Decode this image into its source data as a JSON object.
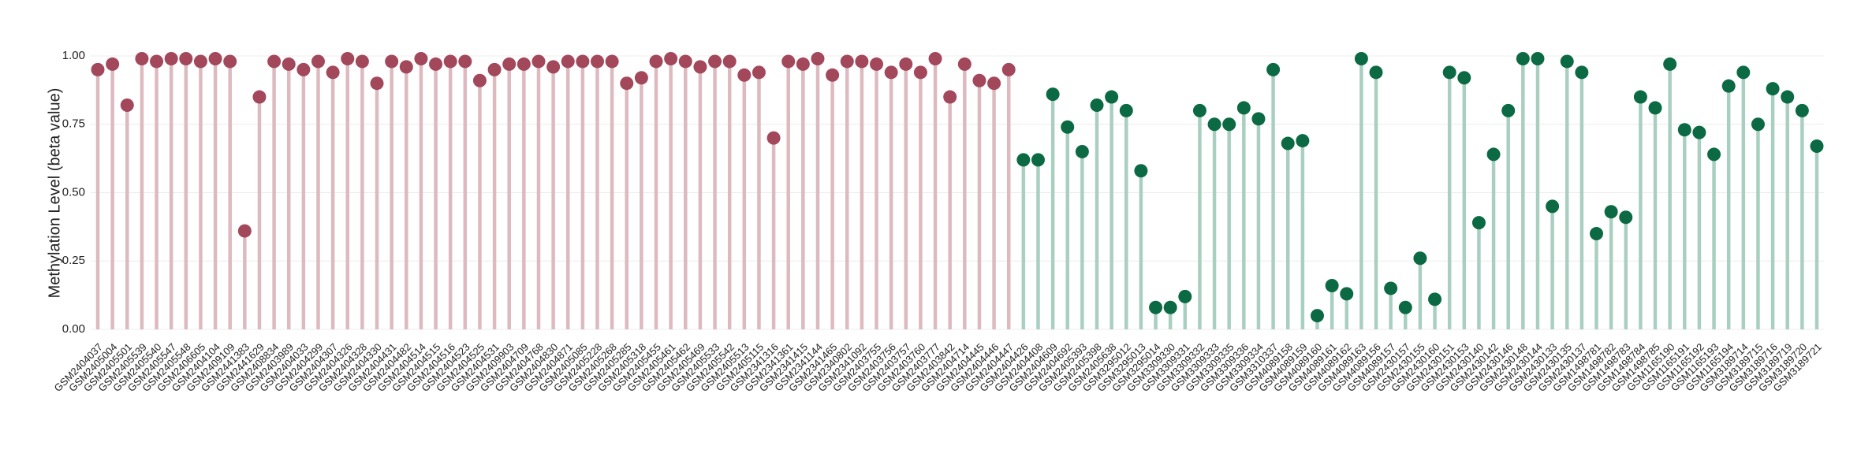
{
  "chart_data": {
    "type": "lollipop",
    "ylabel": "Methylation Level (beta value)",
    "ylim": [
      -0.03,
      1.03
    ],
    "yticks": [
      {
        "value": 0,
        "label": "0.00"
      },
      0.25,
      {
        "value": 0.5,
        "label": "0.50"
      },
      0.75,
      {
        "value": 1,
        "label": "1.00"
      }
    ],
    "grid": true,
    "categories": [
      "GSM2404037",
      "GSM2405004",
      "GSM2405501",
      "GSM2405539",
      "GSM2405540",
      "GSM2405547",
      "GSM2405548",
      "GSM2406605",
      "GSM2404104",
      "GSM2409109",
      "GSM2441383",
      "GSM2441629",
      "GSM2408834",
      "GSM2403989",
      "GSM2404033",
      "GSM2404299",
      "GSM2404307",
      "GSM2404326",
      "GSM2404328",
      "GSM2404330",
      "GSM2404431",
      "GSM2404482",
      "GSM2404514",
      "GSM2404515",
      "GSM2404516",
      "GSM2404523",
      "GSM2404525",
      "GSM2404531",
      "GSM2409903",
      "GSM2404709",
      "GSM2404768",
      "GSM2404830",
      "GSM2404871",
      "GSM2405085",
      "GSM2405228",
      "GSM2405268",
      "GSM2405285",
      "GSM2405318",
      "GSM2405455",
      "GSM2405461",
      "GSM2405462",
      "GSM2405469",
      "GSM2405533",
      "GSM2405542",
      "GSM2405513",
      "GSM2405115",
      "GSM2341316",
      "GSM2341361",
      "GSM2341415",
      "GSM2341144",
      "GSM2341465",
      "GSM2340802",
      "GSM2341092",
      "GSM2403755",
      "GSM2403756",
      "GSM2403757",
      "GSM2403760",
      "GSM2403777",
      "GSM2403842",
      "GSM2404714",
      "GSM2404445",
      "GSM2404446",
      "GSM2404447",
      "GSM2404426",
      "GSM2404408",
      "GSM2404609",
      "GSM2404692",
      "GSM2405393",
      "GSM2405398",
      "GSM2405638",
      "GSM3295012",
      "GSM3295013",
      "GSM3295014",
      "GSM3309330",
      "GSM3309331",
      "GSM3309332",
      "GSM3309333",
      "GSM3309335",
      "GSM3309336",
      "GSM3309334",
      "GSM3310337",
      "GSM4089158",
      "GSM4089159",
      "GSM4089160",
      "GSM4089161",
      "GSM4089162",
      "GSM4089163",
      "GSM4089156",
      "GSM4089157",
      "GSM2430157",
      "GSM2430155",
      "GSM2430160",
      "GSM2430151",
      "GSM2430153",
      "GSM2430140",
      "GSM2430142",
      "GSM2430146",
      "GSM2430148",
      "GSM2430144",
      "GSM2430133",
      "GSM2430135",
      "GSM2430137",
      "GSM1498781",
      "GSM1498782",
      "GSM1498783",
      "GSM1498784",
      "GSM1498785",
      "GSM1165190",
      "GSM1165191",
      "GSM1165192",
      "GSM1165193",
      "GSM1165194",
      "GSM3189714",
      "GSM3189715",
      "GSM3189716",
      "GSM3189719",
      "GSM3189720",
      "GSM3189721"
    ],
    "series": [
      {
        "color": "#a3475b",
        "stem_color": "#ddb9c0",
        "values": [
          0.95,
          0.97,
          0.82,
          0.99,
          0.98,
          0.99,
          0.99,
          0.98,
          0.99,
          0.98,
          0.36,
          0.85,
          0.98,
          0.97,
          0.95,
          0.98,
          0.94,
          0.99,
          0.98,
          0.9,
          0.98,
          0.96,
          0.99,
          0.97,
          0.98,
          0.98,
          0.91,
          0.95,
          0.97,
          0.97,
          0.98,
          0.96,
          0.98,
          0.98,
          0.98,
          0.98,
          0.9,
          0.92,
          0.98,
          0.99,
          0.98,
          0.96,
          0.98,
          0.98,
          0.93,
          0.94,
          0.7,
          0.98,
          0.97,
          0.99,
          0.93,
          0.98,
          0.98,
          0.97,
          0.94,
          0.97,
          0.94,
          0.99,
          0.85,
          0.97,
          0.91,
          0.9,
          0.95,
          null,
          null,
          null,
          null,
          null,
          null,
          null,
          null,
          null,
          null,
          null,
          null,
          null,
          null,
          null,
          null,
          null,
          null,
          null,
          null,
          null,
          null,
          null,
          null,
          null,
          null,
          null,
          null,
          null,
          null,
          null,
          null,
          null,
          null,
          null,
          null,
          null,
          null,
          null,
          null,
          null,
          null,
          null,
          null,
          null,
          null,
          null,
          null,
          null,
          null,
          null,
          null,
          null,
          null,
          null
        ]
      },
      {
        "color": "#0b6a43",
        "stem_color": "#a9cfc1",
        "values": [
          null,
          null,
          null,
          null,
          null,
          null,
          null,
          null,
          null,
          null,
          null,
          null,
          null,
          null,
          null,
          null,
          null,
          null,
          null,
          null,
          null,
          null,
          null,
          null,
          null,
          null,
          null,
          null,
          null,
          null,
          null,
          null,
          null,
          null,
          null,
          null,
          null,
          null,
          null,
          null,
          null,
          null,
          null,
          null,
          null,
          null,
          null,
          null,
          null,
          null,
          null,
          null,
          null,
          null,
          null,
          null,
          null,
          null,
          null,
          null,
          null,
          null,
          null,
          0.62,
          0.62,
          0.86,
          0.74,
          0.65,
          0.82,
          0.85,
          0.8,
          0.58,
          0.08,
          0.08,
          0.12,
          0.8,
          0.75,
          0.75,
          0.81,
          0.77,
          0.95,
          0.68,
          0.69,
          0.05,
          0.16,
          0.13,
          0.99,
          0.94,
          0.15,
          0.08,
          0.26,
          0.11,
          0.94,
          0.92,
          0.39,
          0.64,
          0.8,
          0.99,
          0.99,
          0.45,
          0.98,
          0.94,
          0.35,
          0.43,
          0.41,
          0.85,
          0.81,
          0.97,
          0.73,
          0.72,
          0.64,
          0.89,
          0.94,
          0.75,
          0.88,
          0.85,
          0.8,
          0.67
        ]
      }
    ]
  }
}
